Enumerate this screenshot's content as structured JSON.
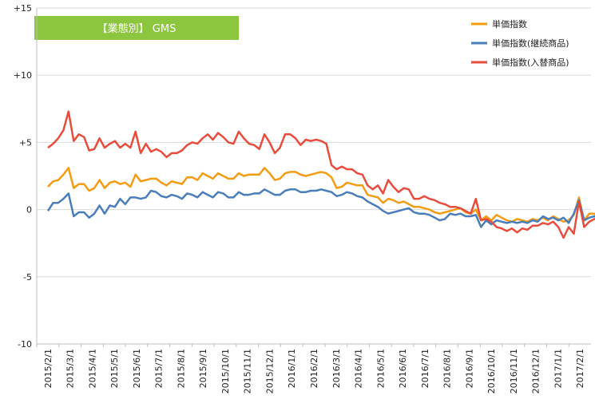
{
  "chart_data": {
    "type": "line",
    "title": "【業態別】 GMS",
    "xlabel": "",
    "ylabel": "",
    "ylim": [
      -10,
      15
    ],
    "y_ticks": [
      "+15",
      "+10",
      "+5",
      "0",
      "-5",
      "-10"
    ],
    "y_tick_values": [
      15,
      10,
      5,
      0,
      -5,
      -10
    ],
    "x_tick_labels": [
      "2015/2/1",
      "2015/3/1",
      "2015/4/1",
      "2015/5/1",
      "2015/6/1",
      "2015/7/1",
      "2015/8/1",
      "2015/9/1",
      "2015/10/1",
      "2015/11/1",
      "2015/12/1",
      "2016/1/1",
      "2016/2/1",
      "2016/3/1",
      "2016/4/1",
      "2016/5/1",
      "2016/6/1",
      "2016/7/1",
      "2016/8/1",
      "2016/9/1",
      "2016/10/1",
      "2016/11/1",
      "2016/12/1",
      "2017/1/1",
      "2017/2/1"
    ],
    "points_per_month": 4.3,
    "grid": true,
    "legend_position": "top-right",
    "series": [
      {
        "name": "単価指数",
        "color": "#F39C12",
        "values": [
          1.7,
          2.1,
          2.2,
          2.6,
          3.1,
          1.6,
          1.9,
          1.9,
          1.4,
          1.6,
          2.2,
          1.6,
          2.0,
          2.1,
          1.9,
          2.0,
          1.7,
          2.6,
          2.1,
          2.2,
          2.3,
          2.3,
          2.0,
          1.8,
          2.1,
          2.0,
          1.9,
          2.4,
          2.4,
          2.2,
          2.7,
          2.5,
          2.3,
          2.7,
          2.5,
          2.3,
          2.3,
          2.7,
          2.5,
          2.6,
          2.6,
          2.6,
          3.1,
          2.7,
          2.2,
          2.3,
          2.7,
          2.8,
          2.8,
          2.6,
          2.5,
          2.6,
          2.7,
          2.8,
          2.7,
          2.4,
          1.6,
          1.7,
          2.0,
          1.9,
          1.8,
          1.8,
          1.1,
          1.0,
          0.9,
          0.5,
          0.8,
          0.7,
          0.5,
          0.6,
          0.4,
          0.2,
          0.2,
          0.1,
          0.0,
          -0.2,
          -0.3,
          -0.2,
          -0.1,
          0.0,
          0.1,
          -0.2,
          -0.3,
          0.0,
          -0.8,
          -0.5,
          -0.8,
          -0.4,
          -0.6,
          -0.8,
          -0.9,
          -0.7,
          -0.8,
          -0.9,
          -0.7,
          -0.8,
          -0.6,
          -0.8,
          -0.5,
          -0.7,
          -0.9,
          -0.8,
          -0.4,
          0.9,
          -0.8,
          -0.3,
          -0.3,
          -0.6,
          -0.7,
          -0.3
        ]
      },
      {
        "name": "単価指数(継続商品)",
        "color": "#4A7EBB",
        "values": [
          -0.1,
          0.5,
          0.5,
          0.8,
          1.2,
          -0.5,
          -0.2,
          -0.2,
          -0.6,
          -0.3,
          0.3,
          -0.3,
          0.3,
          0.2,
          0.8,
          0.4,
          0.9,
          0.9,
          0.8,
          0.9,
          1.4,
          1.3,
          1.0,
          0.9,
          1.1,
          1.0,
          0.8,
          1.2,
          1.1,
          0.9,
          1.3,
          1.1,
          0.9,
          1.3,
          1.2,
          0.9,
          0.9,
          1.3,
          1.1,
          1.1,
          1.2,
          1.2,
          1.5,
          1.3,
          1.1,
          1.1,
          1.4,
          1.5,
          1.5,
          1.3,
          1.3,
          1.4,
          1.4,
          1.5,
          1.4,
          1.3,
          1.0,
          1.1,
          1.3,
          1.2,
          1.0,
          0.9,
          0.6,
          0.4,
          0.2,
          -0.1,
          -0.3,
          -0.2,
          -0.1,
          0.0,
          0.1,
          -0.2,
          -0.3,
          -0.3,
          -0.4,
          -0.6,
          -0.8,
          -0.7,
          -0.3,
          -0.4,
          -0.3,
          -0.5,
          -0.5,
          -0.4,
          -1.3,
          -0.8,
          -1.1,
          -0.8,
          -0.9,
          -1.0,
          -0.9,
          -1.0,
          -0.9,
          -1.0,
          -0.8,
          -0.9,
          -0.5,
          -0.7,
          -0.6,
          -0.8,
          -0.6,
          -1.0,
          -0.3,
          0.7,
          -0.8,
          -0.6,
          -0.5,
          -0.7,
          -0.9,
          -0.5
        ]
      },
      {
        "name": "単価指数(入替商品)",
        "color": "#E74C3C",
        "values": [
          4.6,
          4.9,
          5.3,
          5.9,
          7.3,
          5.1,
          5.6,
          5.4,
          4.4,
          4.5,
          5.3,
          4.6,
          4.9,
          5.1,
          4.6,
          4.9,
          4.6,
          5.8,
          4.2,
          4.9,
          4.3,
          4.5,
          4.3,
          3.9,
          4.2,
          4.2,
          4.4,
          4.8,
          5.0,
          4.9,
          5.3,
          5.6,
          5.2,
          5.7,
          5.4,
          5.0,
          4.9,
          5.8,
          5.3,
          4.9,
          4.8,
          4.5,
          5.6,
          5.0,
          4.2,
          4.6,
          5.6,
          5.6,
          5.3,
          4.8,
          5.2,
          5.1,
          5.2,
          5.1,
          4.9,
          3.3,
          3.0,
          3.2,
          3.0,
          3.0,
          2.7,
          2.6,
          1.8,
          1.5,
          1.8,
          1.2,
          2.2,
          1.7,
          1.3,
          1.6,
          1.5,
          0.8,
          0.8,
          1.0,
          0.8,
          0.7,
          0.5,
          0.4,
          0.2,
          0.2,
          0.1,
          -0.1,
          -0.3,
          0.8,
          -0.8,
          -0.7,
          -0.9,
          -1.3,
          -1.4,
          -1.6,
          -1.4,
          -1.7,
          -1.4,
          -1.5,
          -1.2,
          -1.2,
          -1.0,
          -1.1,
          -0.9,
          -1.3,
          -2.1,
          -1.3,
          -1.8,
          0.6,
          -1.3,
          -0.9,
          -0.7,
          -0.8,
          -0.9,
          -0.6
        ]
      }
    ]
  }
}
